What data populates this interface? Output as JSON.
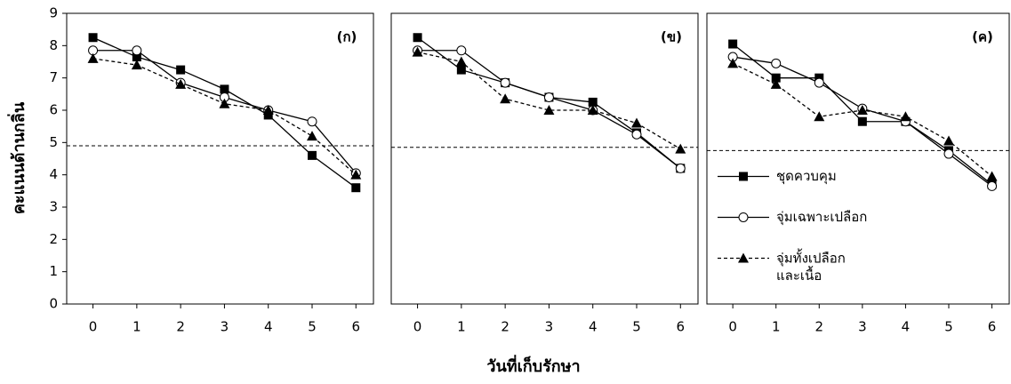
{
  "ylabel": "คะแนนด้านกลิ่น",
  "xlabel": "วันที่เก็บรักษา",
  "chart_data": [
    {
      "type": "line",
      "title": "(ก)",
      "x": [
        0,
        1,
        2,
        3,
        4,
        5,
        6
      ],
      "xlim": [
        -0.6,
        6.4
      ],
      "xticks": [
        0,
        1,
        2,
        3,
        4,
        5,
        6
      ],
      "ylim": [
        0,
        9
      ],
      "yticks": [
        0,
        1,
        2,
        3,
        4,
        5,
        6,
        7,
        8,
        9
      ],
      "hline": 4.9,
      "series": [
        {
          "color": "#000000",
          "marker": "square",
          "line_style": "solid",
          "values": [
            8.25,
            7.65,
            7.25,
            6.65,
            5.85,
            4.6,
            3.6
          ]
        },
        {
          "color": "#000000",
          "marker": "circle",
          "line_style": "solid",
          "values": [
            7.85,
            7.85,
            6.85,
            6.4,
            6.0,
            5.65,
            4.05
          ]
        },
        {
          "color": "#000000",
          "marker": "triangle",
          "line_style": "dashed",
          "values": [
            7.6,
            7.4,
            6.8,
            6.2,
            6.0,
            5.2,
            4.0
          ]
        }
      ]
    },
    {
      "type": "line",
      "title": "(ข)",
      "x": [
        0,
        1,
        2,
        3,
        4,
        5,
        6
      ],
      "xlim": [
        -0.6,
        6.4
      ],
      "xticks": [
        0,
        1,
        2,
        3,
        4,
        5,
        6
      ],
      "ylim": [
        0,
        9
      ],
      "hline": 4.85,
      "series": [
        {
          "color": "#000000",
          "marker": "square",
          "line_style": "solid",
          "values": [
            8.25,
            7.25,
            6.85,
            6.4,
            6.25,
            5.3,
            4.2
          ]
        },
        {
          "color": "#000000",
          "marker": "circle",
          "line_style": "solid",
          "values": [
            7.85,
            7.85,
            6.85,
            6.4,
            6.0,
            5.25,
            4.2
          ]
        },
        {
          "color": "#000000",
          "marker": "triangle",
          "line_style": "dashed",
          "values": [
            7.8,
            7.5,
            6.35,
            6.0,
            6.0,
            5.6,
            4.8
          ]
        }
      ]
    },
    {
      "type": "line",
      "title": "(ค)",
      "x": [
        0,
        1,
        2,
        3,
        4,
        5,
        6
      ],
      "xlim": [
        -0.6,
        6.4
      ],
      "xticks": [
        0,
        1,
        2,
        3,
        4,
        5,
        6
      ],
      "ylim": [
        0,
        9
      ],
      "hline": 4.75,
      "legend": "center-left",
      "series": [
        {
          "name": "ชุดควบคุม",
          "color": "#000000",
          "marker": "square",
          "line_style": "solid",
          "values": [
            8.05,
            7.0,
            7.0,
            5.65,
            5.65,
            4.75,
            3.7
          ]
        },
        {
          "name": "จุ่มเฉพาะเปลือก",
          "color": "#000000",
          "marker": "circle",
          "line_style": "solid",
          "values": [
            7.65,
            7.45,
            6.85,
            6.05,
            5.65,
            4.65,
            3.65
          ]
        },
        {
          "name": "จุ่มทั้งเปลือก\nและเนื้อ",
          "color": "#000000",
          "marker": "triangle",
          "line_style": "dashed",
          "values": [
            7.45,
            6.8,
            5.8,
            6.0,
            5.8,
            5.05,
            3.95
          ]
        }
      ]
    }
  ]
}
